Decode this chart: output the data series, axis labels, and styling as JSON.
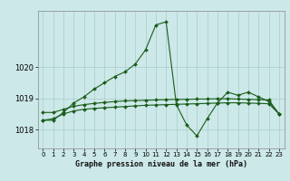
{
  "background_color": "#cce8e8",
  "grid_color": "#aacccc",
  "line_color": "#1a5c1a",
  "title": "Graphe pression niveau de la mer (hPa)",
  "x_ticks": [
    0,
    1,
    2,
    3,
    4,
    5,
    6,
    7,
    8,
    9,
    10,
    11,
    12,
    13,
    14,
    15,
    16,
    17,
    18,
    19,
    20,
    21,
    22,
    23
  ],
  "y_ticks": [
    1018,
    1019,
    1020
  ],
  "ylim": [
    1017.4,
    1021.8
  ],
  "xlim": [
    -0.5,
    23.5
  ],
  "s1": [
    1018.3,
    1018.35,
    1018.5,
    1018.6,
    1018.65,
    1018.68,
    1018.7,
    1018.72,
    1018.74,
    1018.76,
    1018.78,
    1018.79,
    1018.8,
    1018.81,
    1018.82,
    1018.83,
    1018.84,
    1018.85,
    1018.86,
    1018.86,
    1018.85,
    1018.84,
    1018.83,
    1018.5
  ],
  "s2": [
    1018.55,
    1018.55,
    1018.65,
    1018.75,
    1018.8,
    1018.84,
    1018.87,
    1018.9,
    1018.92,
    1018.93,
    1018.94,
    1018.95,
    1018.96,
    1018.97,
    1018.97,
    1018.98,
    1018.98,
    1018.99,
    1018.99,
    1018.98,
    1018.97,
    1018.96,
    1018.95,
    1018.5
  ],
  "s_main": [
    1018.3,
    1018.3,
    1018.55,
    1018.85,
    1019.05,
    1019.3,
    1019.5,
    1019.7,
    1019.85,
    1020.1,
    1020.55,
    1021.35,
    1021.45,
    1018.8,
    1018.15,
    1017.8,
    1018.35,
    1018.85,
    1019.2,
    1019.1,
    1019.2,
    1019.05,
    1018.9,
    1018.5
  ],
  "marker_size": 2,
  "linewidth": 0.8,
  "title_fontsize": 6,
  "tick_fontsize": 5
}
